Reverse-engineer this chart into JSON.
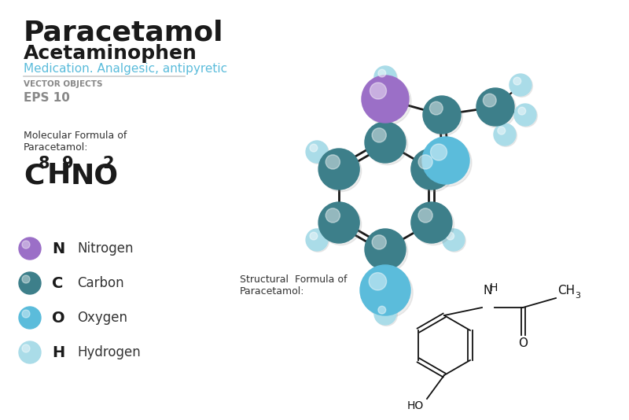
{
  "bg_color": "#ffffff",
  "title": "Paracetamol",
  "subtitle": "Acetaminophen",
  "tagline": "Medication. Analgesic, antipyretic",
  "vector_label": "VECTOR OBJECTS",
  "eps_label": "EPS 10",
  "mol_formula_label": "Molecular Formula of\nParacetamol:",
  "struct_formula_label": "Structural  Formula of\nParacetamol:",
  "legend": [
    {
      "symbol": "N",
      "label": "Nitrogen",
      "color": "#9b6fc7"
    },
    {
      "symbol": "C",
      "label": "Carbon",
      "color": "#3d7f8a"
    },
    {
      "symbol": "O",
      "label": "Oxygen",
      "color": "#5bbcdb"
    },
    {
      "symbol": "H",
      "label": "Hydrogen",
      "color": "#aadce8"
    }
  ],
  "atom_colors": {
    "N": "#9b6fc7",
    "C": "#3d7f8a",
    "O": "#5bbcdb",
    "H": "#aadce8"
  },
  "title_color": "#1a1a1a",
  "subtitle_color": "#1a1a1a",
  "tagline_color": "#5bbcdb",
  "text_color": "#333333",
  "line_color": "#1a1a1a",
  "divider_color": "#cccccc"
}
